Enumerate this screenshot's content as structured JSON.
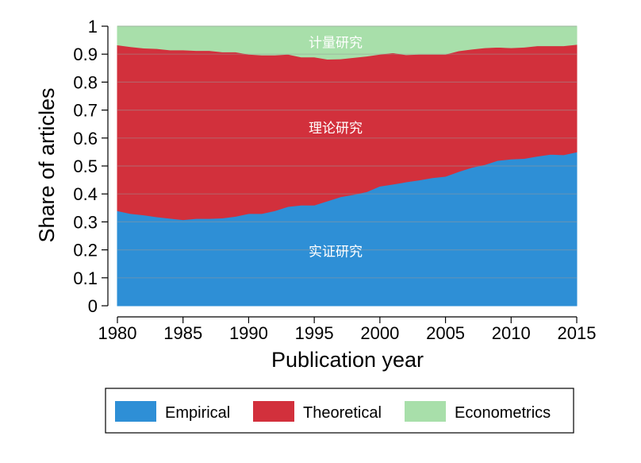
{
  "chart_data": {
    "type": "area",
    "stacked": true,
    "xlabel": "Publication year",
    "ylabel": "Share of articles",
    "xlim": [
      1980,
      2015
    ],
    "ylim": [
      0,
      1
    ],
    "xticks": [
      1980,
      1985,
      1990,
      1995,
      2000,
      2005,
      2010,
      2015
    ],
    "xtick_labels": [
      "1980",
      "1985",
      "1990",
      "1995",
      "2000",
      "2005",
      "2010",
      "2015"
    ],
    "yticks": [
      0,
      0.1,
      0.2,
      0.3,
      0.4,
      0.5,
      0.6,
      0.7,
      0.8,
      0.9,
      1
    ],
    "ytick_labels": [
      "0",
      "0.1",
      "0.2",
      "0.3",
      "0.4",
      "0.5",
      "0.6",
      "0.7",
      "0.8",
      "0.9",
      "1"
    ],
    "grid": "horizontal",
    "legend_position": "bottom",
    "x": [
      1980,
      1981,
      1982,
      1983,
      1984,
      1985,
      1986,
      1987,
      1988,
      1989,
      1990,
      1991,
      1992,
      1993,
      1994,
      1995,
      1996,
      1997,
      1998,
      1999,
      2000,
      2001,
      2002,
      2003,
      2004,
      2005,
      2006,
      2007,
      2008,
      2009,
      2010,
      2011,
      2012,
      2013,
      2014,
      2015
    ],
    "series": [
      {
        "name": "Empirical",
        "color": "#2e8fd6",
        "area_label": "实证研究",
        "values": [
          0.34,
          0.33,
          0.325,
          0.318,
          0.313,
          0.308,
          0.312,
          0.312,
          0.314,
          0.32,
          0.33,
          0.33,
          0.34,
          0.355,
          0.36,
          0.36,
          0.375,
          0.39,
          0.398,
          0.408,
          0.428,
          0.435,
          0.443,
          0.45,
          0.458,
          0.463,
          0.48,
          0.495,
          0.505,
          0.52,
          0.525,
          0.527,
          0.535,
          0.542,
          0.54,
          0.55
        ]
      },
      {
        "name": "Theoretical",
        "color": "#d2303c",
        "area_label": "理论研究",
        "values": [
          0.593,
          0.597,
          0.597,
          0.602,
          0.602,
          0.607,
          0.601,
          0.601,
          0.594,
          0.588,
          0.57,
          0.567,
          0.557,
          0.545,
          0.53,
          0.53,
          0.507,
          0.493,
          0.49,
          0.485,
          0.472,
          0.47,
          0.455,
          0.45,
          0.442,
          0.437,
          0.432,
          0.423,
          0.418,
          0.405,
          0.398,
          0.398,
          0.395,
          0.388,
          0.39,
          0.385
        ]
      },
      {
        "name": "Econometrics",
        "color": "#a8dfaa",
        "area_label": "计量研究",
        "values": [
          0.067,
          0.073,
          0.078,
          0.08,
          0.085,
          0.085,
          0.087,
          0.087,
          0.092,
          0.092,
          0.1,
          0.103,
          0.103,
          0.1,
          0.11,
          0.11,
          0.118,
          0.117,
          0.112,
          0.107,
          0.1,
          0.095,
          0.102,
          0.1,
          0.1,
          0.1,
          0.088,
          0.082,
          0.077,
          0.075,
          0.077,
          0.075,
          0.07,
          0.07,
          0.07,
          0.065
        ]
      }
    ]
  }
}
